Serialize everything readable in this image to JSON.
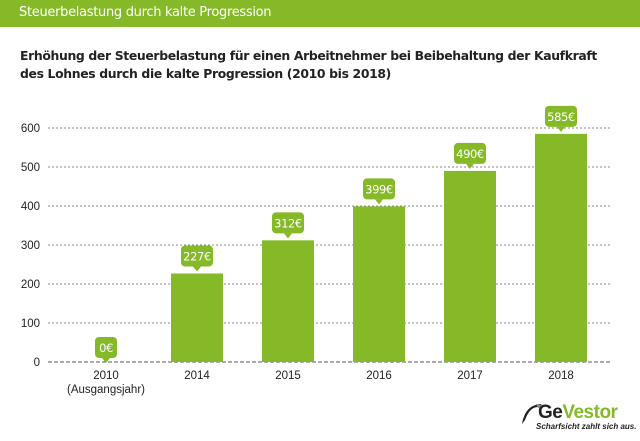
{
  "header": {
    "title": "Steuerbelastung durch kalte Progression"
  },
  "chart_data": {
    "type": "bar",
    "title": "Erhöhung der Steuerbelastung für einen Arbeitnehmer bei Beibehaltung der Kaufkraft des Lohnes durch die kalte Progression (2010 bis 2018)",
    "title_lines": [
      "Erhöhung der Steuerbelastung für einen Arbeitnehmer bei Beibehaltung der Kaufkraft",
      "des Lohnes durch die kalte Progression (2010 bis 2018)"
    ],
    "categories": [
      "2010",
      "2014",
      "2015",
      "2016",
      "2017",
      "2018"
    ],
    "category_sublabels": [
      "(Ausgangsjahr)",
      "",
      "",
      "",
      "",
      ""
    ],
    "values": [
      0,
      227,
      312,
      399,
      490,
      585
    ],
    "data_labels": [
      "0€",
      "227€",
      "312€",
      "399€",
      "490€",
      "585€"
    ],
    "xlabel": "",
    "ylabel": "",
    "ylim": [
      0,
      600
    ],
    "yticks": [
      0,
      100,
      200,
      300,
      400,
      500,
      600
    ],
    "grid": true,
    "legend": "none",
    "bar_color": "#85b927"
  },
  "logo": {
    "brand_part1": "Ge",
    "brand_part2": "Vestor",
    "tagline": "Scharfsicht zahlt sich aus."
  }
}
